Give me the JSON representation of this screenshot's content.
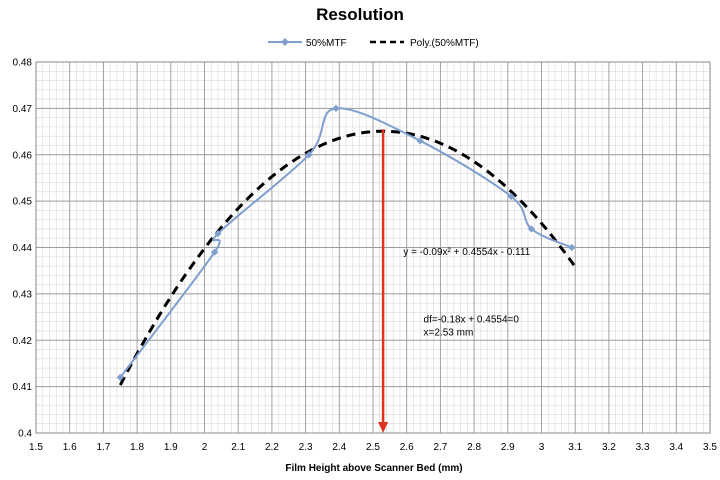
{
  "chart_data": {
    "type": "line",
    "title": "Resolution",
    "xlabel": "Film Height above Scanner Bed (mm)",
    "ylabel": "",
    "xlim": [
      1.5,
      3.5
    ],
    "ylim": [
      0.4,
      0.48
    ],
    "x_ticks": [
      "1.5",
      "1.6",
      "1.7",
      "1.8",
      "1.9",
      "2",
      "2.1",
      "2.2",
      "2.3",
      "2.4",
      "2.5",
      "2.6",
      "2.7",
      "2.8",
      "2.9",
      "3",
      "3.1",
      "3.2",
      "3.3",
      "3.4",
      "3.5"
    ],
    "y_ticks": [
      "0.4",
      "0.41",
      "0.42",
      "0.43",
      "0.44",
      "0.45",
      "0.46",
      "0.47",
      "0.48"
    ],
    "grid": true,
    "minor_grid": true,
    "legend_position": "top-center",
    "series": [
      {
        "name": "50%MTF",
        "color": "#7f9fcf",
        "marker": "diamond",
        "x": [
          1.75,
          2.03,
          2.04,
          2.31,
          2.39,
          2.64,
          2.91,
          2.97,
          3.09
        ],
        "y": [
          0.412,
          0.439,
          0.443,
          0.46,
          0.47,
          0.463,
          0.451,
          0.444,
          0.44
        ]
      },
      {
        "name": "Poly.(50%MTF)",
        "color": "#000000",
        "style": "dashed",
        "trendline": {
          "a": -0.09,
          "b": 0.4554,
          "c": -0.111,
          "x_from": 1.75,
          "x_to": 3.1
        }
      }
    ],
    "annotations": [
      {
        "text_lines": [
          "y = -0.09x² + 0.4554x - 0.111"
        ],
        "x": 2.59,
        "y": 0.4384
      },
      {
        "text_lines": [
          "df=-0.18x + 0.4554=0",
          "x=2.53 mm"
        ],
        "x": 2.65,
        "y": 0.4238
      }
    ],
    "marker_line": {
      "x": 2.53,
      "y_from": 0.4655,
      "y_to": 0.4,
      "color": "#e0321e"
    }
  }
}
